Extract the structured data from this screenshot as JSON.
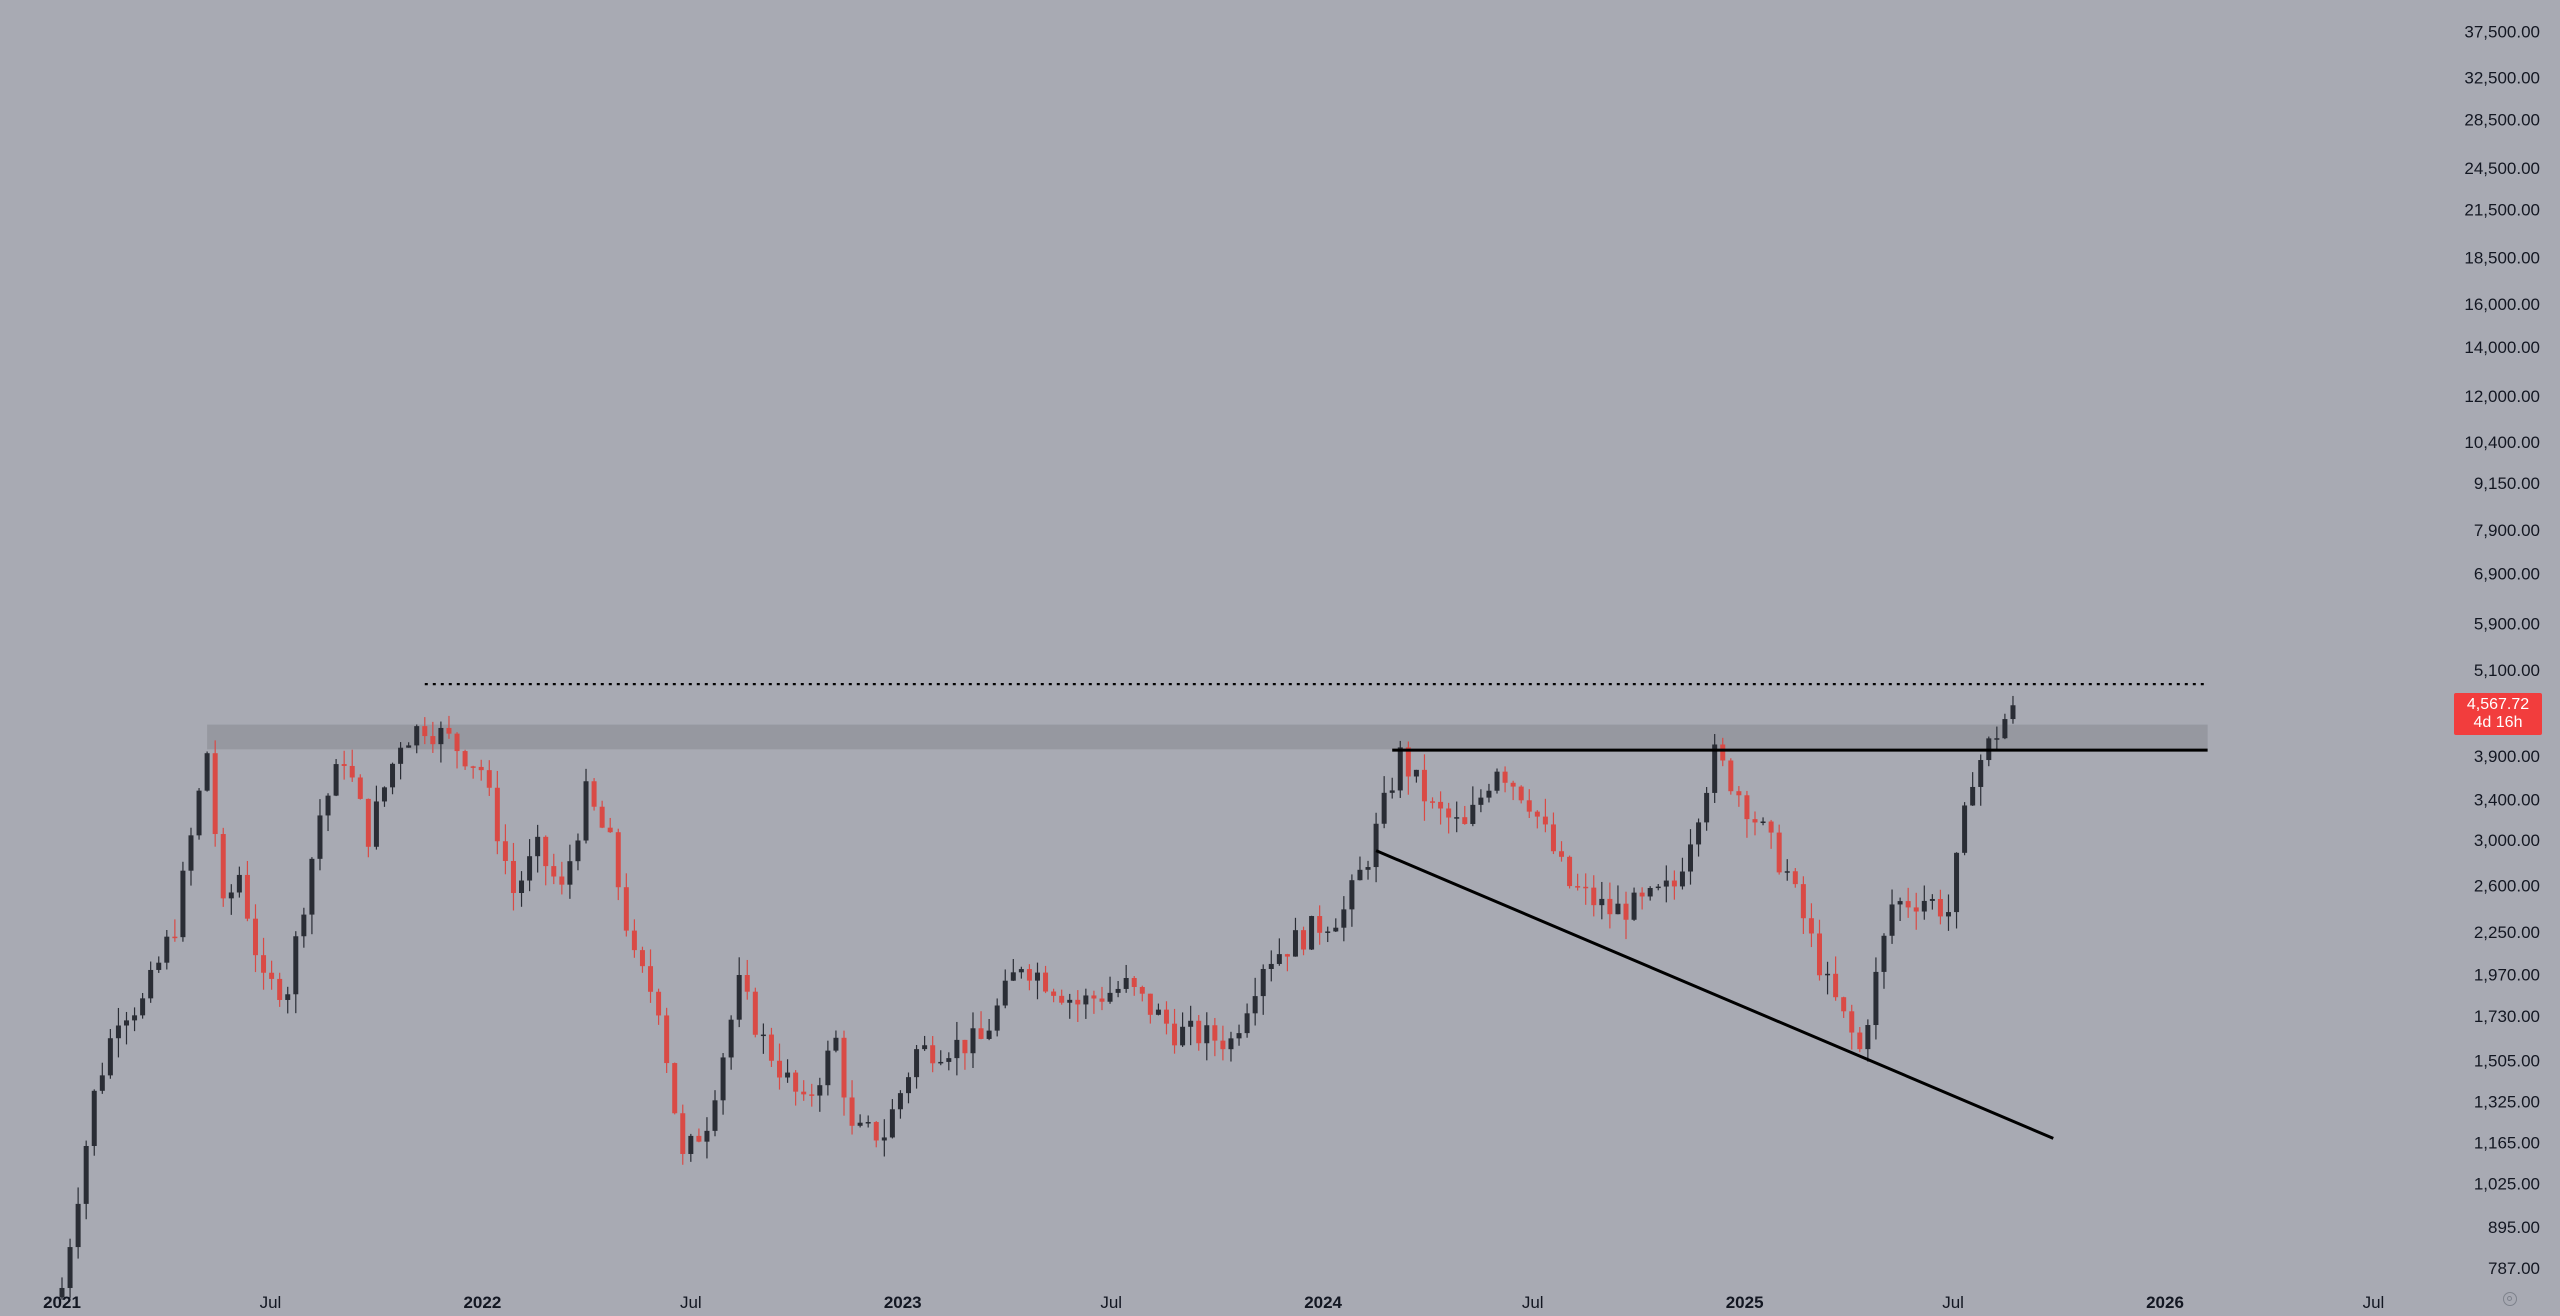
{
  "colors": {
    "background": "#a8aab3",
    "up": "#2a2d35",
    "down": "#d94a45",
    "zone": "#93959c",
    "line": "#000000",
    "price_tag": "#f23d3d"
  },
  "price_tag": {
    "price": "4,567.72",
    "countdown": "4d 16h"
  },
  "chart_data": {
    "type": "candlestick",
    "interval": "1W",
    "scale": "log",
    "grid": false,
    "y_ticks": [
      "37,500.00",
      "32,500.00",
      "28,500.00",
      "24,500.00",
      "21,500.00",
      "18,500.00",
      "16,000.00",
      "14,000.00",
      "12,000.00",
      "10,400.00",
      "9,150.00",
      "7,900.00",
      "6,900.00",
      "5,900.00",
      "5,100.00",
      "3,900.00",
      "3,400.00",
      "3,000.00",
      "2,600.00",
      "2,250.00",
      "1,970.00",
      "1,730.00",
      "1,505.00",
      "1,325.00",
      "1,165.00",
      "1,025.00",
      "895.00",
      "787.00"
    ],
    "y_tick_values": [
      37500,
      32500,
      28500,
      24500,
      21500,
      18500,
      16000,
      14000,
      12000,
      10400,
      9150,
      7900,
      6900,
      5900,
      5100,
      3900,
      3400,
      3000,
      2600,
      2250,
      1970,
      1730,
      1505,
      1325,
      1165,
      1025,
      895,
      787
    ],
    "x_ticks": [
      {
        "label": "2021",
        "date": "2021-01-01",
        "year": true
      },
      {
        "label": "Jul",
        "date": "2021-07-01",
        "year": false
      },
      {
        "label": "2022",
        "date": "2022-01-01",
        "year": true
      },
      {
        "label": "Jul",
        "date": "2022-07-01",
        "year": false
      },
      {
        "label": "2023",
        "date": "2023-01-01",
        "year": true
      },
      {
        "label": "Jul",
        "date": "2023-07-01",
        "year": false
      },
      {
        "label": "2024",
        "date": "2024-01-01",
        "year": true
      },
      {
        "label": "Jul",
        "date": "2024-07-01",
        "year": false
      },
      {
        "label": "2025",
        "date": "2025-01-01",
        "year": true
      },
      {
        "label": "Jul",
        "date": "2025-07-01",
        "year": false
      },
      {
        "label": "2026",
        "date": "2026-01-01",
        "year": true
      },
      {
        "label": "Jul",
        "date": "2026-07-01",
        "year": false
      }
    ],
    "key_points": [
      {
        "date": "2021-01-01",
        "price": 740
      },
      {
        "date": "2021-01-29",
        "price": 1350
      },
      {
        "date": "2021-02-19",
        "price": 1750
      },
      {
        "date": "2021-03-12",
        "price": 1800
      },
      {
        "date": "2021-04-09",
        "price": 2300
      },
      {
        "date": "2021-05-07",
        "price": 3950
      },
      {
        "date": "2021-05-21",
        "price": 2400
      },
      {
        "date": "2021-06-04",
        "price": 2700
      },
      {
        "date": "2021-06-25",
        "price": 1900
      },
      {
        "date": "2021-07-16",
        "price": 1900
      },
      {
        "date": "2021-08-13",
        "price": 3250
      },
      {
        "date": "2021-09-03",
        "price": 3900
      },
      {
        "date": "2021-09-24",
        "price": 3050
      },
      {
        "date": "2021-10-22",
        "price": 4100
      },
      {
        "date": "2021-11-12",
        "price": 4300
      },
      {
        "date": "2021-12-03",
        "price": 4100
      },
      {
        "date": "2021-12-31",
        "price": 3750
      },
      {
        "date": "2022-01-28",
        "price": 2550
      },
      {
        "date": "2022-02-18",
        "price": 2900
      },
      {
        "date": "2022-03-11",
        "price": 2550
      },
      {
        "date": "2022-04-01",
        "price": 3450
      },
      {
        "date": "2022-04-22",
        "price": 2950
      },
      {
        "date": "2022-05-13",
        "price": 2050
      },
      {
        "date": "2022-06-03",
        "price": 1800
      },
      {
        "date": "2022-06-24",
        "price": 1100
      },
      {
        "date": "2022-07-15",
        "price": 1250
      },
      {
        "date": "2022-08-12",
        "price": 1900
      },
      {
        "date": "2022-09-02",
        "price": 1600
      },
      {
        "date": "2022-10-07",
        "price": 1300
      },
      {
        "date": "2022-11-04",
        "price": 1600
      },
      {
        "date": "2022-11-18",
        "price": 1200
      },
      {
        "date": "2022-12-16",
        "price": 1200
      },
      {
        "date": "2023-01-13",
        "price": 1550
      },
      {
        "date": "2023-03-10",
        "price": 1600
      },
      {
        "date": "2023-04-14",
        "price": 2050
      },
      {
        "date": "2023-06-02",
        "price": 1800
      },
      {
        "date": "2023-07-14",
        "price": 1900
      },
      {
        "date": "2023-08-25",
        "price": 1650
      },
      {
        "date": "2023-10-13",
        "price": 1600
      },
      {
        "date": "2023-11-10",
        "price": 2050
      },
      {
        "date": "2023-12-29",
        "price": 2300
      },
      {
        "date": "2024-01-19",
        "price": 2400
      },
      {
        "date": "2024-02-09",
        "price": 2850
      },
      {
        "date": "2024-03-08",
        "price": 3900
      },
      {
        "date": "2024-04-05",
        "price": 3300
      },
      {
        "date": "2024-05-03",
        "price": 3100
      },
      {
        "date": "2024-05-31",
        "price": 3800
      },
      {
        "date": "2024-06-28",
        "price": 3400
      },
      {
        "date": "2024-08-02",
        "price": 2600
      },
      {
        "date": "2024-09-06",
        "price": 2400
      },
      {
        "date": "2024-10-04",
        "price": 2450
      },
      {
        "date": "2024-11-01",
        "price": 2600
      },
      {
        "date": "2024-12-06",
        "price": 3900
      },
      {
        "date": "2025-01-03",
        "price": 3350
      },
      {
        "date": "2025-02-07",
        "price": 2700
      },
      {
        "date": "2025-03-14",
        "price": 1900
      },
      {
        "date": "2025-04-11",
        "price": 1550
      },
      {
        "date": "2025-05-09",
        "price": 2450
      },
      {
        "date": "2025-06-06",
        "price": 2500
      },
      {
        "date": "2025-06-27",
        "price": 2400
      },
      {
        "date": "2025-07-18",
        "price": 3700
      },
      {
        "date": "2025-08-08",
        "price": 4200
      },
      {
        "date": "2025-08-22",
        "price": 4567.72
      }
    ],
    "resistance_zone": {
      "low": 3980,
      "high": 4300,
      "from": "2021-05-07",
      "to": "2026-02-07"
    },
    "annotations": {
      "prior_high_dotted": {
        "price": 4880,
        "from": "2021-11-12",
        "to": "2026-02-07"
      },
      "neckline": {
        "price": 3970,
        "from": "2024-03-01",
        "to": "2026-02-07"
      },
      "trendline": {
        "from": {
          "date": "2024-02-16",
          "price": 2900
        },
        "to": {
          "date": "2025-09-26",
          "price": 1180
        }
      }
    }
  }
}
